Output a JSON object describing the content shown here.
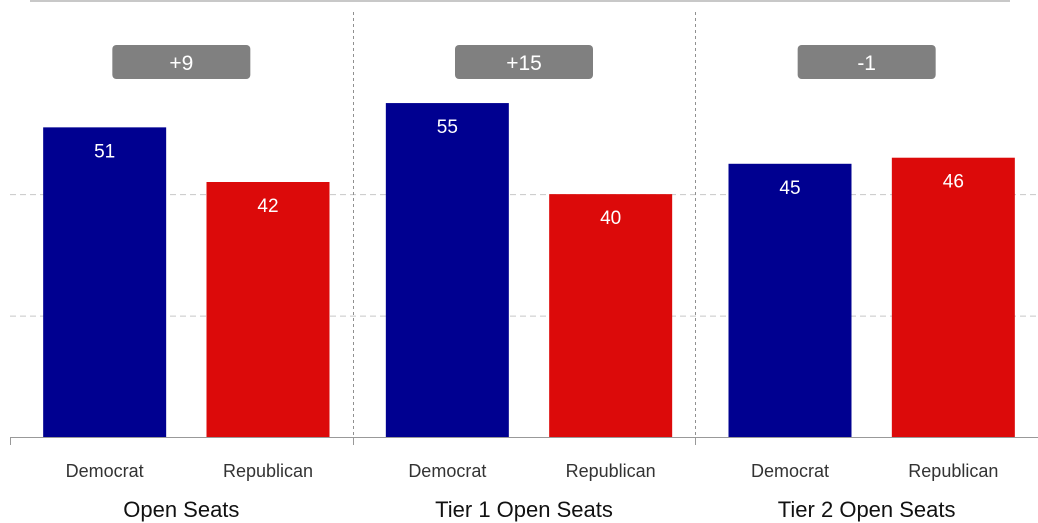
{
  "chart_data": {
    "type": "bar",
    "ylim": [
      0,
      70
    ],
    "grid": true,
    "colors": {
      "Democrat": "#000090",
      "Republican": "#dc0a0a",
      "badge": "#808080"
    },
    "groups": [
      {
        "label": "Open Seats",
        "badge": "+9",
        "bars": [
          {
            "category": "Democrat",
            "value": 51
          },
          {
            "category": "Republican",
            "value": 42
          }
        ]
      },
      {
        "label": "Tier 1 Open Seats",
        "badge": "+15",
        "bars": [
          {
            "category": "Democrat",
            "value": 55
          },
          {
            "category": "Republican",
            "value": 40
          }
        ]
      },
      {
        "label": "Tier 2 Open Seats",
        "badge": "-1",
        "bars": [
          {
            "category": "Democrat",
            "value": 45
          },
          {
            "category": "Republican",
            "value": 46
          }
        ]
      }
    ]
  }
}
